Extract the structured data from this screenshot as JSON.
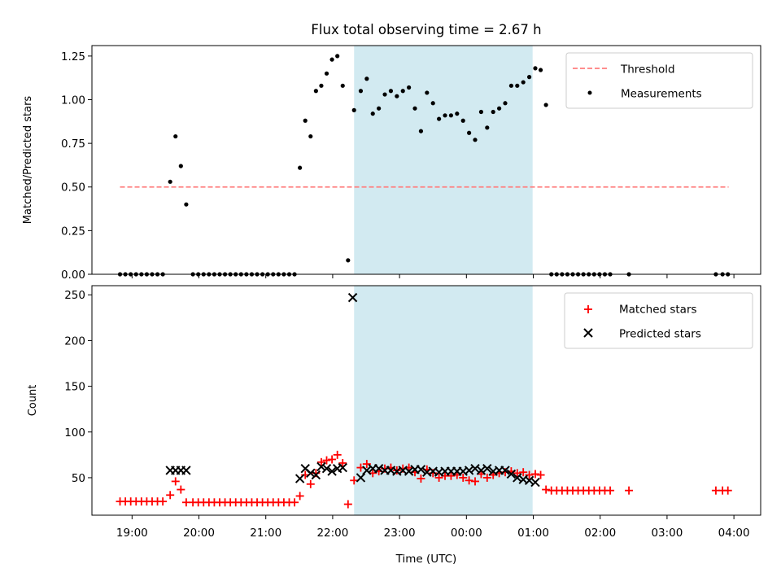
{
  "chart_data": {
    "title": "Flux total observing time = 2.67 h",
    "x_ticks": [
      "19:00",
      "20:00",
      "21:00",
      "22:00",
      "23:00",
      "00:00",
      "01:00",
      "02:00",
      "03:00",
      "04:00"
    ],
    "x_range_hours": [
      18.4,
      28.4
    ],
    "shaded_interval_hours": [
      22.32,
      24.99
    ],
    "colors": {
      "shade": "#add8e6",
      "threshold": "#ff7f7f",
      "matched": "#ff0000",
      "predicted": "#000000",
      "measurements": "#000000"
    },
    "panels": [
      {
        "type": "scatter",
        "ylabel": "Matched/Predicted stars",
        "ylim": [
          0,
          1.31
        ],
        "yticks": [
          "0.00",
          "0.25",
          "0.50",
          "0.75",
          "1.00",
          "1.25"
        ],
        "ytick_values": [
          0,
          0.25,
          0.5,
          0.75,
          1.0,
          1.25
        ],
        "legend": {
          "placement": "top-right",
          "entries": [
            "Threshold",
            "Measurements"
          ]
        },
        "threshold": {
          "name": "Threshold",
          "y": 0.5,
          "x_start": 18.82,
          "x_end": 27.92
        },
        "measurements": {
          "name": "Measurements",
          "x": [
            18.82,
            18.9,
            18.98,
            19.06,
            19.14,
            19.22,
            19.3,
            19.38,
            19.46,
            19.57,
            19.65,
            19.73,
            19.81,
            19.91,
            19.99,
            20.07,
            20.15,
            20.23,
            20.31,
            20.39,
            20.47,
            20.55,
            20.63,
            20.71,
            20.79,
            20.87,
            20.95,
            21.03,
            21.11,
            21.19,
            21.27,
            21.35,
            21.43,
            21.51,
            21.59,
            21.67,
            21.75,
            21.83,
            21.91,
            21.99,
            22.07,
            22.15,
            22.23,
            22.32,
            22.42,
            22.51,
            22.6,
            22.69,
            22.78,
            22.87,
            22.96,
            23.05,
            23.14,
            23.23,
            23.32,
            23.41,
            23.5,
            23.59,
            23.68,
            23.77,
            23.86,
            23.95,
            24.04,
            24.13,
            24.22,
            24.31,
            24.4,
            24.49,
            24.58,
            24.67,
            24.76,
            24.85,
            24.94,
            25.03,
            25.11,
            25.19,
            25.27,
            25.35,
            25.43,
            25.51,
            25.59,
            25.67,
            25.75,
            25.83,
            25.91,
            25.99,
            26.07,
            26.15,
            26.43,
            27.73,
            27.83,
            27.91
          ],
          "y": [
            0,
            0,
            0,
            0,
            0,
            0,
            0,
            0,
            0,
            0.53,
            0.79,
            0.62,
            0.4,
            0,
            0,
            0,
            0,
            0,
            0,
            0,
            0,
            0,
            0,
            0,
            0,
            0,
            0,
            0,
            0,
            0,
            0,
            0,
            0,
            0.61,
            0.88,
            0.79,
            1.05,
            1.08,
            1.15,
            1.23,
            1.25,
            1.08,
            0.08,
            0.94,
            1.05,
            1.12,
            0.92,
            0.95,
            1.03,
            1.05,
            1.02,
            1.05,
            1.07,
            0.95,
            0.82,
            1.04,
            0.98,
            0.89,
            0.91,
            0.91,
            0.92,
            0.88,
            0.81,
            0.77,
            0.93,
            0.84,
            0.93,
            0.95,
            0.98,
            1.08,
            1.08,
            1.1,
            1.13,
            1.18,
            1.17,
            0.97,
            0,
            0,
            0,
            0,
            0,
            0,
            0,
            0,
            0,
            0,
            0,
            0,
            0,
            0,
            0,
            0
          ]
        }
      },
      {
        "type": "scatter",
        "ylabel": "Count",
        "xlabel": "Time (UTC)",
        "ylim": [
          9,
          260
        ],
        "yticks": [
          "50",
          "100",
          "150",
          "200",
          "250"
        ],
        "ytick_values": [
          50,
          100,
          150,
          200,
          250
        ],
        "legend": {
          "placement": "top-right",
          "entries": [
            "Matched stars",
            "Predicted stars"
          ]
        },
        "series": [
          {
            "name": "Matched stars",
            "marker": "+",
            "x": [
              18.82,
              18.9,
              18.98,
              19.06,
              19.14,
              19.22,
              19.3,
              19.38,
              19.46,
              19.57,
              19.65,
              19.73,
              19.81,
              19.91,
              19.99,
              20.07,
              20.15,
              20.23,
              20.31,
              20.39,
              20.47,
              20.55,
              20.63,
              20.71,
              20.79,
              20.87,
              20.95,
              21.03,
              21.11,
              21.19,
              21.27,
              21.35,
              21.43,
              21.51,
              21.59,
              21.67,
              21.75,
              21.83,
              21.91,
              21.99,
              22.07,
              22.15,
              22.23,
              22.32,
              22.42,
              22.51,
              22.6,
              22.69,
              22.78,
              22.87,
              22.96,
              23.05,
              23.14,
              23.23,
              23.32,
              23.41,
              23.5,
              23.59,
              23.68,
              23.77,
              23.86,
              23.95,
              24.04,
              24.13,
              24.22,
              24.31,
              24.4,
              24.49,
              24.58,
              24.67,
              24.76,
              24.85,
              24.94,
              25.03,
              25.11,
              25.19,
              25.27,
              25.35,
              25.43,
              25.51,
              25.59,
              25.67,
              25.75,
              25.83,
              25.91,
              25.99,
              26.07,
              26.15,
              26.43,
              27.73,
              27.83,
              27.91
            ],
            "y": [
              24,
              24,
              24,
              24,
              24,
              24,
              24,
              24,
              24,
              31,
              46,
              37,
              23,
              23,
              23,
              23,
              23,
              23,
              23,
              23,
              23,
              23,
              23,
              23,
              23,
              23,
              23,
              23,
              23,
              23,
              23,
              23,
              23,
              30,
              53,
              43,
              55,
              67,
              69,
              70,
              75,
              66,
              21,
              47,
              61,
              65,
              55,
              57,
              60,
              61,
              58,
              60,
              61,
              56,
              49,
              59,
              55,
              50,
              52,
              52,
              53,
              50,
              47,
              46,
              54,
              50,
              53,
              55,
              56,
              57,
              55,
              56,
              53,
              54,
              53,
              37,
              36,
              36,
              36,
              36,
              36,
              36,
              36,
              36,
              36,
              36,
              36,
              36,
              36,
              36,
              36,
              36
            ]
          },
          {
            "name": "Predicted stars",
            "marker": "x",
            "x": [
              19.57,
              19.65,
              19.73,
              19.81,
              21.51,
              21.59,
              21.67,
              21.75,
              21.83,
              21.91,
              21.99,
              22.07,
              22.15,
              22.3,
              22.42,
              22.51,
              22.6,
              22.69,
              22.78,
              22.87,
              22.96,
              23.05,
              23.14,
              23.23,
              23.32,
              23.41,
              23.5,
              23.59,
              23.68,
              23.77,
              23.86,
              23.95,
              24.04,
              24.13,
              24.22,
              24.31,
              24.4,
              24.49,
              24.58,
              24.67,
              24.76,
              24.85,
              24.94,
              25.03
            ],
            "y": [
              58,
              58,
              58,
              58,
              49,
              60,
              55,
              53,
              62,
              60,
              57,
              60,
              61,
              247,
              50,
              58,
              60,
              60,
              58,
              58,
              57,
              58,
              57,
              59,
              59,
              56,
              57,
              56,
              57,
              57,
              57,
              57,
              58,
              60,
              58,
              60,
              57,
              58,
              58,
              54,
              50,
              48,
              47,
              45
            ]
          }
        ]
      }
    ]
  }
}
